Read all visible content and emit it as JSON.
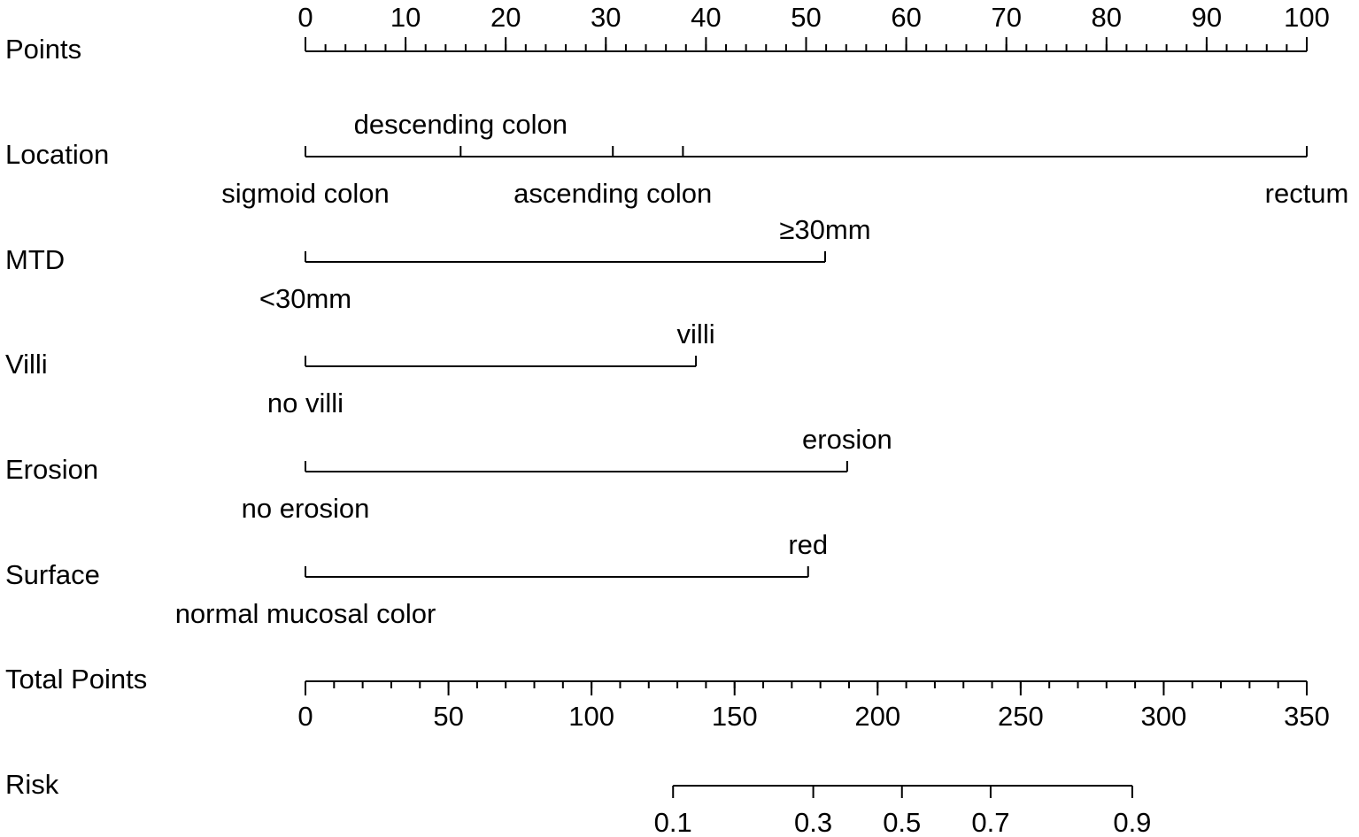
{
  "chart_data": {
    "type": "nomogram",
    "points_axis": {
      "label": "Points",
      "range": [
        0,
        100
      ],
      "major_ticks": [
        0,
        10,
        20,
        30,
        40,
        50,
        60,
        70,
        80,
        90,
        100
      ],
      "tick_labels": [
        "0",
        "10",
        "20",
        "30",
        "40",
        "50",
        "60",
        "70",
        "80",
        "90",
        "100"
      ],
      "minor_step": 2
    },
    "variables": [
      {
        "name": "Location",
        "levels": [
          {
            "label": "sigmoid colon",
            "points": 0,
            "side": "below"
          },
          {
            "label": "descending colon",
            "points": 15.5,
            "side": "above"
          },
          {
            "label": "ascending colon",
            "points": 30.7,
            "side": "below"
          },
          {
            "label": "",
            "points": 37.7,
            "side": "above"
          },
          {
            "label": "rectum",
            "points": 100,
            "side": "below"
          }
        ]
      },
      {
        "name": "MTD",
        "levels": [
          {
            "label": "<30mm",
            "points": 0,
            "side": "below"
          },
          {
            "label": "≥30mm",
            "points": 51.9,
            "side": "above"
          }
        ]
      },
      {
        "name": "Villi",
        "levels": [
          {
            "label": "no villi",
            "points": 0,
            "side": "below"
          },
          {
            "label": "villi",
            "points": 39.0,
            "side": "above"
          }
        ]
      },
      {
        "name": "Erosion",
        "levels": [
          {
            "label": "no erosion",
            "points": 0,
            "side": "below"
          },
          {
            "label": "erosion",
            "points": 54.1,
            "side": "above"
          }
        ]
      },
      {
        "name": "Surface",
        "levels": [
          {
            "label": "normal mucosal color",
            "points": 0,
            "side": "below"
          },
          {
            "label": "red",
            "points": 50.2,
            "side": "above"
          }
        ]
      }
    ],
    "total_points_axis": {
      "label": "Total Points",
      "range": [
        0,
        350
      ],
      "major_ticks": [
        0,
        50,
        100,
        150,
        200,
        250,
        300,
        350
      ],
      "tick_labels": [
        "0",
        "50",
        "100",
        "150",
        "200",
        "250",
        "300",
        "350"
      ],
      "minor_step": 10
    },
    "risk_axis": {
      "label": "Risk",
      "ticks": [
        {
          "label": "0.1",
          "total_points": 128.5
        },
        {
          "label": "0.3",
          "total_points": 177.5
        },
        {
          "label": "0.5",
          "total_points": 208.5
        },
        {
          "label": "0.7",
          "total_points": 239.5
        },
        {
          "label": "0.9",
          "total_points": 289.0
        }
      ]
    }
  }
}
